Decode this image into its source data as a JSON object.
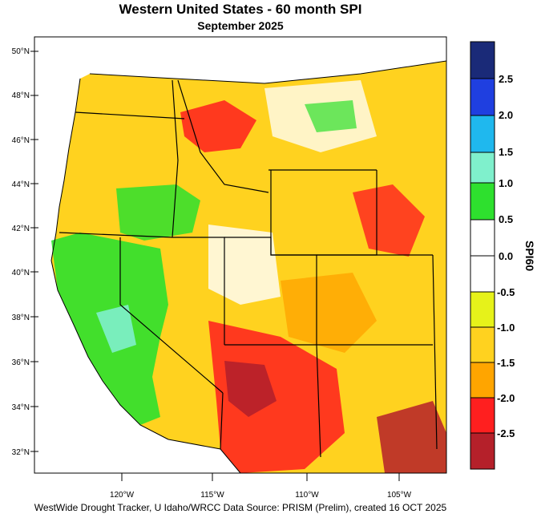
{
  "map": {
    "title": "Western United States - 60 month SPI",
    "subtitle": "September 2025",
    "footer": "WestWide Drought Tracker, U Idaho/WRCC Data Source: PRISM (Prelim), created 16 OCT 2025",
    "lat_labels": [
      "50°N",
      "48°N",
      "46°N",
      "44°N",
      "42°N",
      "40°N",
      "38°N",
      "36°N",
      "34°N",
      "32°N"
    ],
    "lon_labels": [
      "120°W",
      "115°W",
      "110°W",
      "105°W"
    ],
    "colorbar_title": "SPI60",
    "colorbar_labels": [
      "2.5",
      "2.0",
      "1.5",
      "1.0",
      "0.5",
      "0.0",
      "-0.5",
      "-1.0",
      "-1.5",
      "-2.0",
      "-2.5"
    ],
    "colorbar_colors": [
      "#1a2a78",
      "#1f3fe0",
      "#1fb8ee",
      "#7ff0cc",
      "#2ee02e",
      "#ffffff",
      "#e6f21a",
      "#ffd21f",
      "#ffa500",
      "#ff1f1f",
      "#b5202a"
    ]
  }
}
